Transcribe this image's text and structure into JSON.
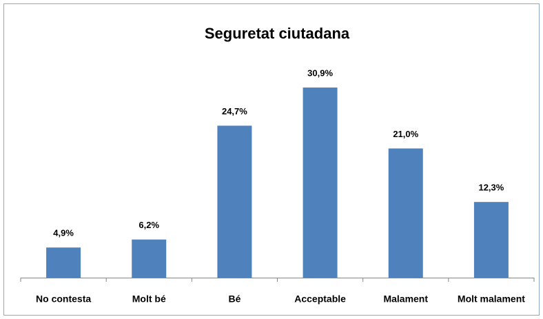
{
  "chart_data": {
    "type": "bar",
    "title": "Seguretat ciutadana",
    "categories": [
      "No contesta",
      "Molt bé",
      "Bé",
      "Acceptable",
      "Malament",
      "Molt malament"
    ],
    "values": [
      4.9,
      6.2,
      24.7,
      30.9,
      21.0,
      12.3
    ],
    "value_labels": [
      "4,9%",
      "6,2%",
      "24,7%",
      "30,9%",
      "21,0%",
      "12,3%"
    ],
    "color": "#4f81bd"
  }
}
